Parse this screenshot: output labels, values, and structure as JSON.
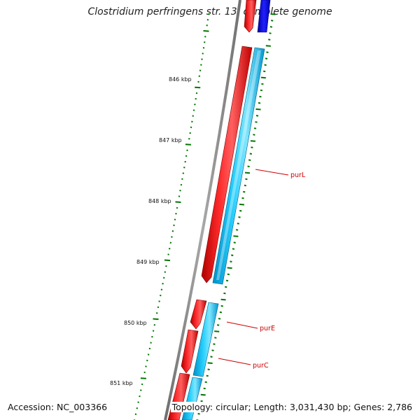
{
  "title": "Clostridium perfringens str. 13, complete genome",
  "accession_text": "Accession: NC_003366",
  "summary_text": "Topology: circular; Length: 3,031,430 bp; Genes: 2,786",
  "scale_labels": [
    "846 kbp",
    "847 kbp",
    "848 kbp",
    "849 kbp",
    "850 kbp",
    "851 kbp"
  ],
  "gene_labels": [
    "purL",
    "purE",
    "purC"
  ],
  "colors": {
    "backbone": "#808080",
    "forward_gene": "#ff0000",
    "reverse_gene_cds": "#00c0ff",
    "reverse_gene_dark": "#0000ff",
    "tick": "#007700",
    "gene_label": "#cc0000"
  }
}
